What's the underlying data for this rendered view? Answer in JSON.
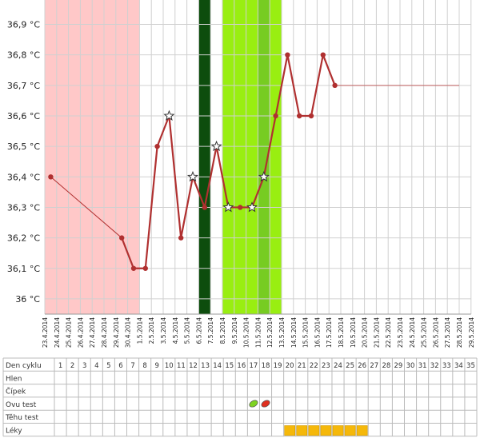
{
  "chart_data": {
    "type": "line",
    "title": "",
    "xlabel": "",
    "ylabel": "",
    "y_unit": "°C",
    "ylim": [
      35.95,
      36.98
    ],
    "grid": true,
    "y_ticks": [
      {
        "value": 36.0,
        "label": "36 °C"
      },
      {
        "value": 36.1,
        "label": "36,1 °C"
      },
      {
        "value": 36.2,
        "label": "36,2 °C"
      },
      {
        "value": 36.3,
        "label": "36,3 °C"
      },
      {
        "value": 36.4,
        "label": "36,4 °C"
      },
      {
        "value": 36.5,
        "label": "36,5 °C"
      },
      {
        "value": 36.6,
        "label": "36,6 °C"
      },
      {
        "value": 36.7,
        "label": "36,7 °C"
      },
      {
        "value": 36.8,
        "label": "36,8 °C"
      },
      {
        "value": 36.9,
        "label": "36,9 °C"
      }
    ],
    "dates": [
      "23.4.2014",
      "24.4.2014",
      "25.4.2014",
      "26.4.2014",
      "27.4.2014",
      "28.4.2014",
      "29.4.2014",
      "30.4.2014",
      "1.5.2014",
      "2.5.2014",
      "3.5.2014",
      "4.5.2014",
      "5.5.2014",
      "6.5.2014",
      "7.5.2014",
      "8.5.2014",
      "9.5.2014",
      "10.5.2014",
      "11.5.2014",
      "12.5.2014",
      "13.5.2014",
      "14.5.2014",
      "15.5.2014",
      "16.5.2014",
      "17.5.2014",
      "18.5.2014",
      "19.5.2014",
      "20.5.2014",
      "21.5.2014",
      "22.5.2014",
      "23.5.2014",
      "24.5.2014",
      "25.5.2014",
      "26.5.2014",
      "27.5.2014",
      "28.5.2014",
      "29.5.2014"
    ],
    "series": [
      {
        "color": "#b03030",
        "points": [
          {
            "day": 1,
            "value": 36.4
          },
          {
            "day": 7,
            "value": 36.2
          },
          {
            "day": 8,
            "value": 36.1
          },
          {
            "day": 9,
            "value": 36.1
          },
          {
            "day": 10,
            "value": 36.5
          },
          {
            "day": 11,
            "value": 36.6,
            "star": true
          },
          {
            "day": 12,
            "value": 36.2
          },
          {
            "day": 13,
            "value": 36.4,
            "star": true
          },
          {
            "day": 14,
            "value": 36.3
          },
          {
            "day": 15,
            "value": 36.5,
            "star": true
          },
          {
            "day": 16,
            "value": 36.3,
            "star": true
          },
          {
            "day": 17,
            "value": 36.3
          },
          {
            "day": 18,
            "value": 36.3,
            "star": true
          },
          {
            "day": 19,
            "value": 36.4,
            "star": true
          },
          {
            "day": 20,
            "value": 36.6
          },
          {
            "day": 21,
            "value": 36.8
          },
          {
            "day": 22,
            "value": 36.6
          },
          {
            "day": 23,
            "value": 36.6
          },
          {
            "day": 24,
            "value": 36.8
          },
          {
            "day": 25,
            "value": 36.7
          }
        ]
      }
    ],
    "coverline": {
      "value": 36.7,
      "from_day": 25,
      "to_day": 36,
      "color": "#c06060"
    },
    "bands": [
      {
        "from_day": 1,
        "to_day": 8,
        "color": "#ffc8c8"
      },
      {
        "from_day": 14,
        "to_day": 14,
        "color": "#0d4d0d"
      },
      {
        "from_day": 16,
        "to_day": 20,
        "color": "#99ee11"
      },
      {
        "from_day": 19,
        "to_day": 19,
        "color": "#77cc22"
      }
    ],
    "marker_colors": {
      "dot": "#b03030",
      "line": "#b03030",
      "star_fill": "#ffffff",
      "star_stroke": "#333333"
    }
  },
  "table": {
    "row_labels": [
      "Den cyklu",
      "Hlen",
      "Čípek",
      "Ovu test",
      "Těhu test",
      "Léky"
    ],
    "days": [
      "1",
      "2",
      "3",
      "4",
      "5",
      "6",
      "7",
      "8",
      "9",
      "10",
      "11",
      "12",
      "13",
      "14",
      "15",
      "16",
      "17",
      "18",
      "19",
      "20",
      "21",
      "22",
      "23",
      "24",
      "25",
      "26",
      "27",
      "28",
      "29",
      "30",
      "31",
      "32",
      "33",
      "34",
      "35"
    ],
    "ovu_tests": [
      {
        "day": 17,
        "result": "negative",
        "color": "#7ed321"
      },
      {
        "day": 18,
        "result": "positive",
        "color": "#e03020"
      }
    ],
    "meds": {
      "from_day": 20,
      "to_day": 26,
      "color": "#f5b80a"
    }
  }
}
